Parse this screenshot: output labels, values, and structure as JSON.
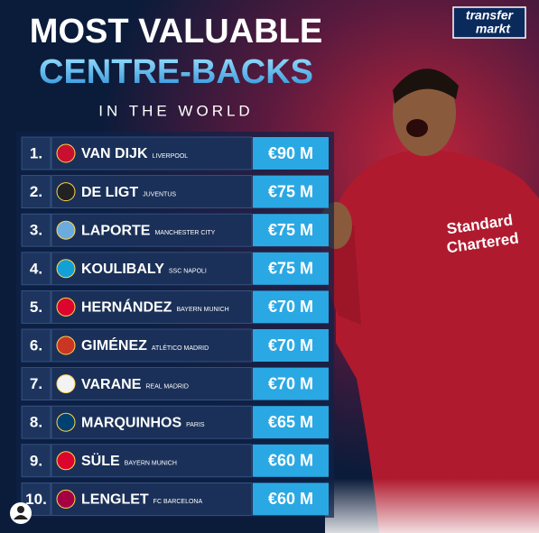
{
  "header": {
    "line1": "MOST VALUABLE",
    "line2": "CENTRE-BACKS",
    "line3": "IN THE WORLD"
  },
  "logo": {
    "top": "transfer",
    "bottom": "markt"
  },
  "rows": [
    {
      "rank": "1.",
      "name": "VAN DIJK",
      "club": "LIVERPOOL",
      "value": "€90 M"
    },
    {
      "rank": "2.",
      "name": "DE LIGT",
      "club": "JUVENTUS",
      "value": "€75 M"
    },
    {
      "rank": "3.",
      "name": "LAPORTE",
      "club": "MANCHESTER CITY",
      "value": "€75 M"
    },
    {
      "rank": "4.",
      "name": "KOULIBALY",
      "club": "SSC NAPOLI",
      "value": "€75 M"
    },
    {
      "rank": "5.",
      "name": "HERNÁNDEZ",
      "club": "BAYERN MUNICH",
      "value": "€70 M"
    },
    {
      "rank": "6.",
      "name": "GIMÉNEZ",
      "club": "ATLÉTICO MADRID",
      "value": "€70 M"
    },
    {
      "rank": "7.",
      "name": "VARANE",
      "club": "REAL MADRID",
      "value": "€70 M"
    },
    {
      "rank": "8.",
      "name": "MARQUINHOS",
      "club": "PARIS",
      "value": "€65 M"
    },
    {
      "rank": "9.",
      "name": "SÜLE",
      "club": "BAYERN MUNICH",
      "value": "€60 M"
    },
    {
      "rank": "10.",
      "name": "LENGLET",
      "club": "FC BARCELONA",
      "value": "€60 M"
    }
  ]
}
